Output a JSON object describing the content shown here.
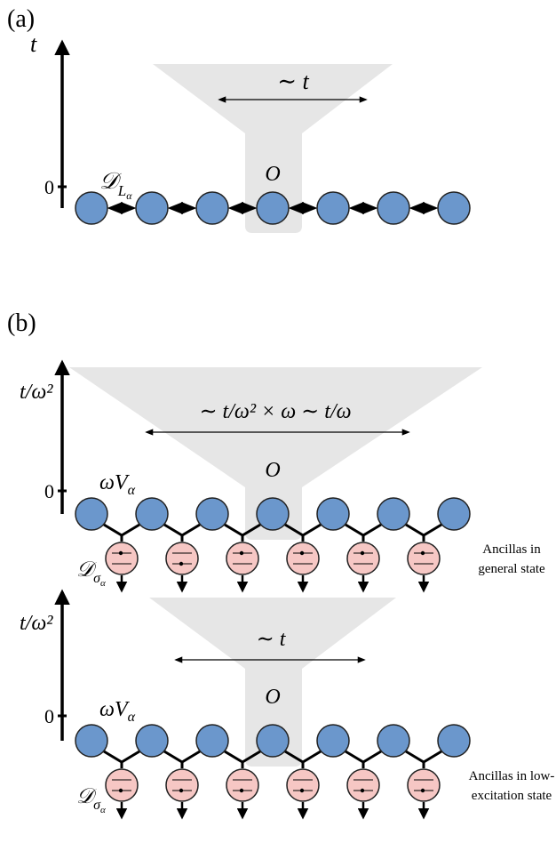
{
  "panel_a": {
    "label": "(a)",
    "axis_label": "t",
    "zero": "0",
    "range_label": "∼ t",
    "operator": "O",
    "dissipator": {
      "symbol": "𝒟",
      "sub": "L",
      "subsub": "α"
    }
  },
  "panel_b": {
    "label": "(b)",
    "general": {
      "axis_label": "t/ω²",
      "zero": "0",
      "range_label": "∼ t/ω² × ω ∼ t/ω",
      "operator": "O",
      "coupling": {
        "base": "ωV",
        "sub": "α"
      },
      "dissipator": {
        "symbol": "𝒟",
        "sub": "σ",
        "subsub": "α"
      },
      "note": [
        "Ancillas in",
        "general state"
      ]
    },
    "low_excitation": {
      "axis_label": "t/ω²",
      "zero": "0",
      "range_label": "∼ t",
      "operator": "O",
      "coupling": {
        "base": "ωV",
        "sub": "α"
      },
      "dissipator": {
        "symbol": "𝒟",
        "sub": "σ",
        "subsub": "α"
      },
      "note": [
        "Ancillas in low-",
        "excitation state"
      ]
    }
  }
}
